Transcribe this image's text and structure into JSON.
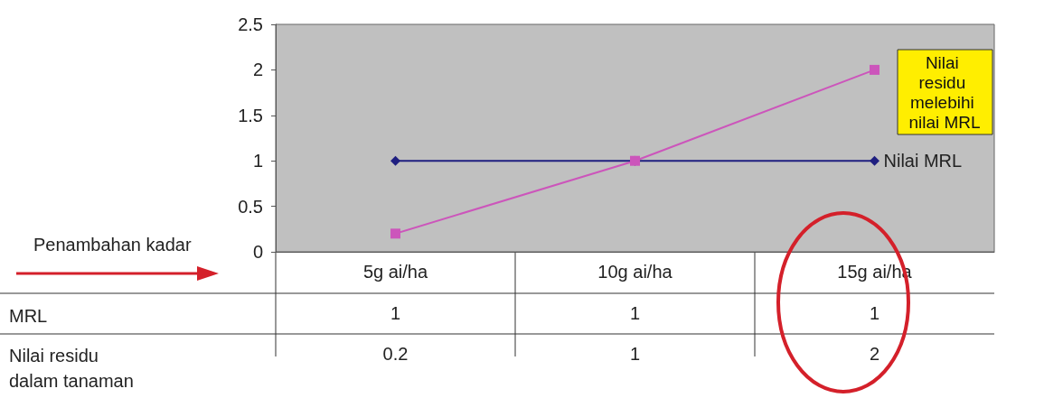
{
  "chart_data": {
    "type": "line",
    "categories": [
      "5g ai/ha",
      "10g ai/ha",
      "15g ai/ha"
    ],
    "series": [
      {
        "name": "Nilai MRL",
        "color": "#1f1f80",
        "marker": "diamond",
        "values": [
          1,
          1,
          1
        ]
      },
      {
        "color": "#cc55bb",
        "marker": "square",
        "values": [
          0.2,
          1,
          2
        ]
      }
    ],
    "ylim": [
      0,
      2.5
    ],
    "yticks": [
      0,
      0.5,
      1,
      1.5,
      2,
      2.5
    ],
    "grid": false,
    "legend": false,
    "data_labels": true,
    "annotations": [
      "Penambahan kadar",
      "Nilai residu melebihi nilai MRL",
      "MRL",
      "Nilai residu dalam tanaman"
    ]
  }
}
